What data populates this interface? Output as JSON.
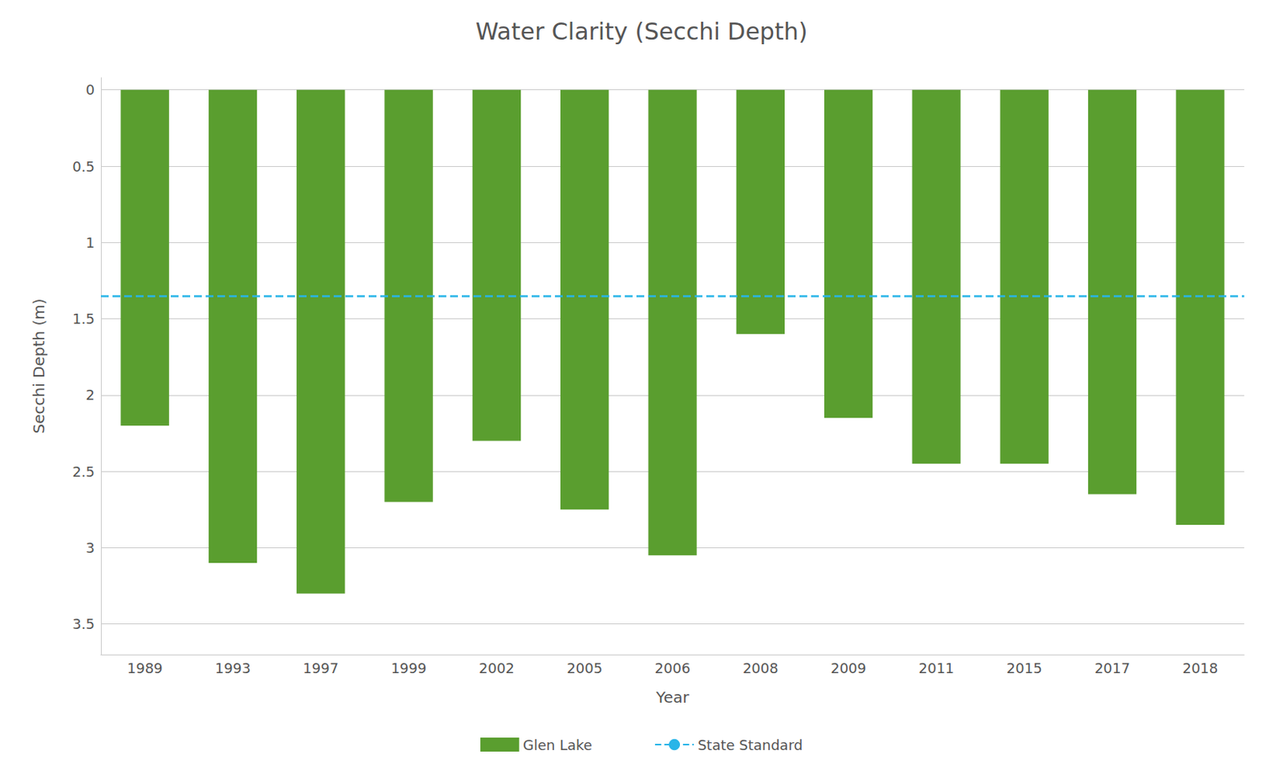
{
  "chart_data": {
    "type": "bar",
    "title": "Water Clarity (Secchi Depth)",
    "xlabel": "Year",
    "ylabel": "Secchi Depth (m)",
    "categories": [
      "1989",
      "1993",
      "1997",
      "1999",
      "2002",
      "2005",
      "2006",
      "2008",
      "2009",
      "2011",
      "2015",
      "2017",
      "2018"
    ],
    "series": [
      {
        "name": "Glen Lake",
        "type": "bar",
        "color": "#5a9e2f",
        "values": [
          2.2,
          3.1,
          3.3,
          2.7,
          2.3,
          2.75,
          3.05,
          1.6,
          2.15,
          2.45,
          2.45,
          2.65,
          2.85
        ]
      },
      {
        "name": "State Standard",
        "type": "hline",
        "color": "#29b5e8",
        "line_style": "dashed",
        "value": 1.35
      }
    ],
    "ylim": [
      3.7,
      -0.08
    ],
    "yticks": [
      0,
      0.5,
      1,
      1.5,
      2,
      2.5,
      3,
      3.5
    ],
    "grid": true,
    "legend": "bottom"
  }
}
